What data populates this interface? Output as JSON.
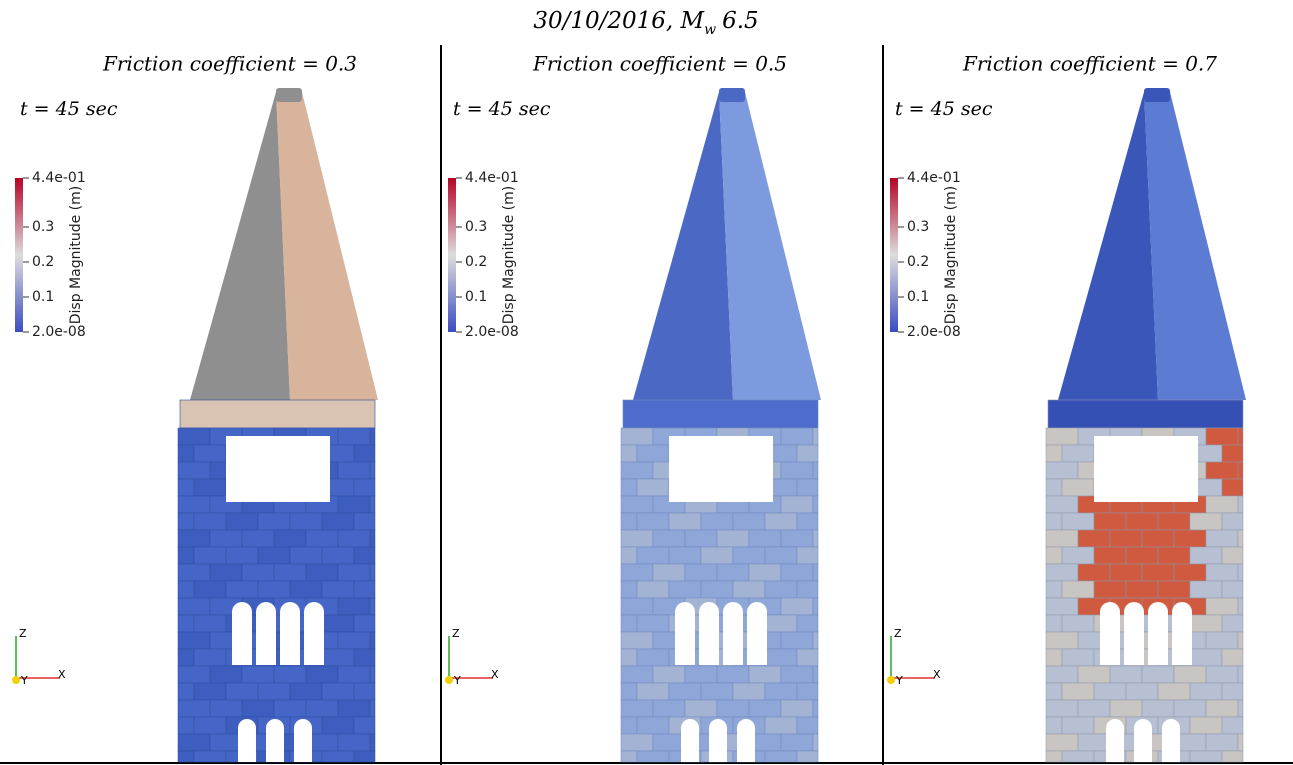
{
  "title": {
    "prefix": "30/10/2016, M",
    "subscript": "w",
    "suffix": "6.5"
  },
  "panels": [
    {
      "heading": "Friction coefficient = 0.3",
      "time": "t = 45 sec",
      "colorbar": {
        "title": "Disp Magnitude (m)",
        "range": [
          2e-08,
          0.44
        ],
        "ticks": [
          {
            "value": 0.44,
            "label": "4.4e-01"
          },
          0.3,
          0.2,
          0.1,
          {
            "value": 2e-08,
            "label": "2.0e-08"
          }
        ]
      },
      "axes": {
        "z": "Z",
        "y": "Y",
        "x": "X"
      }
    },
    {
      "heading": "Friction coefficient = 0.5",
      "time": "t = 45 sec",
      "colorbar": {
        "title": "Disp Magnitude (m)",
        "range": [
          2e-08,
          0.44
        ],
        "ticks": [
          {
            "value": 0.44,
            "label": "4.4e-01"
          },
          0.3,
          0.2,
          0.1,
          {
            "value": 2e-08,
            "label": "2.0e-08"
          }
        ]
      },
      "axes": {
        "z": "Z",
        "y": "Y",
        "x": "X"
      }
    },
    {
      "heading": "Friction coefficient = 0.7",
      "time": "t = 45 sec",
      "colorbar": {
        "title": "Disp Magnitude (m)",
        "range": [
          2e-08,
          0.44
        ],
        "ticks": [
          {
            "value": 0.44,
            "label": "4.4e-01"
          },
          0.3,
          0.2,
          0.1,
          {
            "value": 2e-08,
            "label": "2.0e-08"
          }
        ]
      },
      "axes": {
        "z": "Z",
        "y": "Y",
        "x": "X"
      }
    }
  ]
}
